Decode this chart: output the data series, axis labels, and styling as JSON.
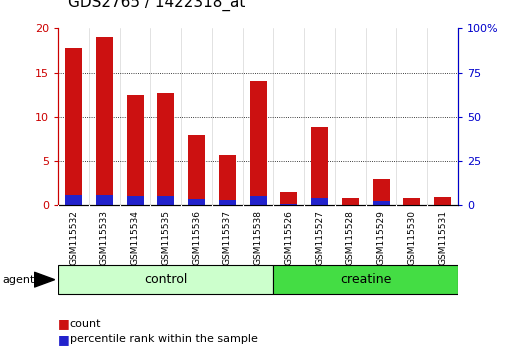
{
  "title": "GDS2765 / 1422318_at",
  "samples": [
    "GSM115532",
    "GSM115533",
    "GSM115534",
    "GSM115535",
    "GSM115536",
    "GSM115537",
    "GSM115538",
    "GSM115526",
    "GSM115527",
    "GSM115528",
    "GSM115529",
    "GSM115530",
    "GSM115531"
  ],
  "count_values": [
    17.8,
    19.0,
    12.5,
    12.7,
    7.9,
    5.7,
    14.0,
    1.5,
    8.9,
    0.8,
    3.0,
    0.8,
    0.9
  ],
  "percentile_values": [
    6.1,
    6.1,
    5.0,
    5.0,
    3.5,
    3.0,
    5.0,
    0.9,
    4.0,
    0.3,
    2.2,
    0.3,
    0.3
  ],
  "groups": [
    {
      "label": "control",
      "start": 0,
      "end": 7,
      "color": "#ccffcc"
    },
    {
      "label": "creatine",
      "start": 7,
      "end": 13,
      "color": "#44dd44"
    }
  ],
  "ylim_left": [
    0,
    20
  ],
  "ylim_right": [
    0,
    100
  ],
  "left_ticks": [
    0,
    5,
    10,
    15,
    20
  ],
  "right_ticks": [
    0,
    25,
    50,
    75,
    100
  ],
  "left_tick_color": "#cc0000",
  "right_tick_color": "#0000cc",
  "bar_color_red": "#cc1111",
  "bar_color_blue": "#2222cc",
  "bar_width": 0.55,
  "bg_color": "#ffffff",
  "xlabel_area_color": "#cccccc",
  "title_fontsize": 11,
  "tick_fontsize": 8,
  "legend_fontsize": 8,
  "agent_label": "agent",
  "group_label_fontsize": 9
}
